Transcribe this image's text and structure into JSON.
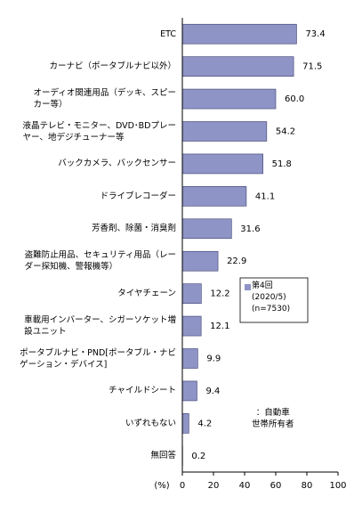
{
  "chart_data": {
    "type": "bar",
    "orientation": "horizontal",
    "categories": [
      "ETC",
      "カーナビ（ポータブルナビ以外）",
      "オーディオ関連用品（デッキ、スピー\nカー等）",
      "液晶テレビ・モニター、DVD･BDプレー\nヤー、地デジチューナー等",
      "バックカメラ、バックセンサー",
      "ドライブレコーダー",
      "芳香剤、除菌・消臭剤",
      "盗難防止用品、セキュリティ用品（レー\nダー探知機、警報機等）",
      "タイヤチェーン",
      "車載用インバーター、シガーソケット増\n設ユニット",
      "ポータブルナビ・PND[ポータブル・ナビ\nゲーション・デバイス]",
      "チャイルドシート",
      "いずれもない",
      "無回答"
    ],
    "series": [
      {
        "name": "第4回\n(2020/5)\n(n=7530)",
        "color": "#8e94c6",
        "values": [
          73.4,
          71.5,
          60.0,
          54.2,
          51.8,
          41.1,
          31.6,
          22.9,
          12.2,
          12.1,
          9.9,
          9.4,
          4.2,
          0.2
        ],
        "value_labels": [
          "73.4",
          "71.5",
          "60.0",
          "54.2",
          "51.8",
          "41.1",
          "31.6",
          "22.9",
          "12.2",
          "12.1",
          "9.9",
          "9.4",
          "4.2",
          "0.2"
        ]
      }
    ],
    "xlim": [
      0,
      100
    ],
    "xticks": [
      0,
      20,
      40,
      60,
      80,
      100
    ],
    "xlabel": "(%)",
    "annotation": "：自動車\n世帯所有者",
    "grid": false
  }
}
